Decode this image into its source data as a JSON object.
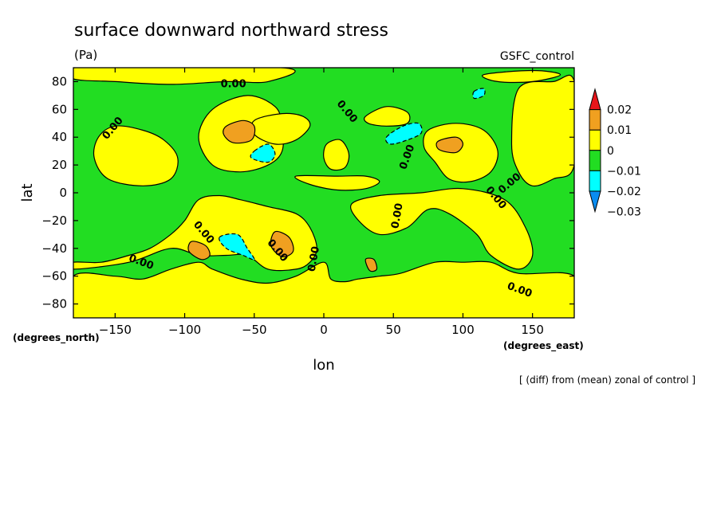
{
  "chart_data": {
    "type": "heatmap",
    "title": "surface downward northward stress",
    "units": "(Pa)",
    "dataset": "GSFC_control",
    "footnote": "[ (diff) from (mean) zonal of control ]",
    "xlabel": "lon",
    "ylabel": "lat",
    "x_units": "(degrees_east)",
    "y_units": "(degrees_north)",
    "xlim": [
      -180,
      180
    ],
    "ylim": [
      -90,
      90
    ],
    "x_ticks": [
      -150,
      -100,
      -50,
      0,
      50,
      100,
      150
    ],
    "y_ticks": [
      80,
      60,
      40,
      20,
      0,
      -20,
      -40,
      -60,
      -80
    ],
    "contour_label": "0.00",
    "colorbar": {
      "labels": [
        "0.02",
        "0.01",
        "0",
        "−0.01",
        "−0.02",
        "−0.03"
      ],
      "bins": [
        {
          "range": [
            0.02,
            null
          ],
          "color": "#e8151b"
        },
        {
          "range": [
            0.01,
            0.02
          ],
          "color": "#f0a020"
        },
        {
          "range": [
            0.0,
            0.01
          ],
          "color": "#ffff00"
        },
        {
          "range": [
            -0.01,
            0.0
          ],
          "color": "#22dd22"
        },
        {
          "range": [
            -0.02,
            -0.01
          ],
          "color": "#00ffff"
        },
        {
          "range": [
            null,
            -0.02
          ],
          "color": "#0a8cf0"
        }
      ]
    },
    "background_color": "#22dd22",
    "regions": [
      {
        "level": 0.0,
        "color": "#ffff00",
        "polygon": [
          [
            -180,
            -90
          ],
          [
            180,
            -90
          ],
          [
            180,
            -60
          ],
          [
            140,
            -58
          ],
          [
            120,
            -50
          ],
          [
            100,
            -50
          ],
          [
            80,
            -50
          ],
          [
            55,
            -58
          ],
          [
            40,
            -60
          ],
          [
            25,
            -62
          ],
          [
            15,
            -64
          ],
          [
            5,
            -62
          ],
          [
            0,
            -50
          ],
          [
            -20,
            -60
          ],
          [
            -40,
            -65
          ],
          [
            -60,
            -62
          ],
          [
            -80,
            -55
          ],
          [
            -90,
            -50
          ],
          [
            -110,
            -55
          ],
          [
            -130,
            -62
          ],
          [
            -150,
            -60
          ],
          [
            -180,
            -60
          ]
        ]
      },
      {
        "level": 0.0,
        "color": "#ffff00",
        "polygon": [
          [
            -180,
            -50
          ],
          [
            -160,
            -50
          ],
          [
            -140,
            -45
          ],
          [
            -125,
            -40
          ],
          [
            -110,
            -30
          ],
          [
            -100,
            -20
          ],
          [
            -90,
            -5
          ],
          [
            -75,
            -2
          ],
          [
            -60,
            -5
          ],
          [
            -40,
            -10
          ],
          [
            -20,
            -15
          ],
          [
            -10,
            -25
          ],
          [
            -5,
            -40
          ],
          [
            -10,
            -50
          ],
          [
            -20,
            -55
          ],
          [
            -40,
            -55
          ],
          [
            -55,
            -45
          ],
          [
            -70,
            -45
          ],
          [
            -90,
            -45
          ],
          [
            -110,
            -40
          ],
          [
            -140,
            -50
          ],
          [
            -180,
            -55
          ]
        ]
      },
      {
        "level": 0.0,
        "color": "#ffff00",
        "polygon": [
          [
            -80,
            60
          ],
          [
            -55,
            70
          ],
          [
            -35,
            62
          ],
          [
            -30,
            48
          ],
          [
            -30,
            30
          ],
          [
            -40,
            20
          ],
          [
            -60,
            15
          ],
          [
            -80,
            20
          ],
          [
            -90,
            40
          ]
        ]
      },
      {
        "level": 0.0,
        "color": "#ffff00",
        "polygon": [
          [
            -150,
            48
          ],
          [
            -130,
            45
          ],
          [
            -115,
            38
          ],
          [
            -105,
            25
          ],
          [
            -110,
            10
          ],
          [
            -130,
            5
          ],
          [
            -155,
            10
          ],
          [
            -165,
            25
          ],
          [
            -162,
            40
          ]
        ]
      },
      {
        "level": 0.0,
        "color": "#ffff00",
        "polygon": [
          [
            -50,
            52
          ],
          [
            -30,
            57
          ],
          [
            -15,
            55
          ],
          [
            -10,
            48
          ],
          [
            -20,
            38
          ],
          [
            -35,
            35
          ],
          [
            -50,
            42
          ]
        ]
      },
      {
        "level": 0.0,
        "color": "#ffff00",
        "polygon": [
          [
            40,
            -2
          ],
          [
            70,
            0
          ],
          [
            100,
            3
          ],
          [
            130,
            -5
          ],
          [
            145,
            -25
          ],
          [
            150,
            -45
          ],
          [
            140,
            -55
          ],
          [
            120,
            -45
          ],
          [
            110,
            -30
          ],
          [
            90,
            -15
          ],
          [
            75,
            -12
          ],
          [
            60,
            -25
          ],
          [
            40,
            -30
          ],
          [
            25,
            -20
          ],
          [
            20,
            -8
          ]
        ]
      },
      {
        "level": 0.0,
        "color": "#ffff00",
        "polygon": [
          [
            75,
            45
          ],
          [
            95,
            50
          ],
          [
            115,
            45
          ],
          [
            125,
            30
          ],
          [
            120,
            15
          ],
          [
            105,
            8
          ],
          [
            90,
            10
          ],
          [
            80,
            22
          ],
          [
            72,
            33
          ]
        ]
      },
      {
        "level": 0.0,
        "color": "#ffff00",
        "polygon": [
          [
            -20,
            12
          ],
          [
            -10,
            6
          ],
          [
            10,
            2
          ],
          [
            30,
            3
          ],
          [
            40,
            8
          ],
          [
            30,
            12
          ],
          [
            10,
            12
          ]
        ]
      },
      {
        "level": 0.0,
        "color": "#ffff00",
        "polygon": [
          [
            2,
            35
          ],
          [
            12,
            38
          ],
          [
            18,
            28
          ],
          [
            15,
            18
          ],
          [
            5,
            17
          ],
          [
            0,
            25
          ]
        ]
      },
      {
        "level": 0.0,
        "color": "#ffff00",
        "polygon": [
          [
            140,
            75
          ],
          [
            165,
            80
          ],
          [
            180,
            80
          ],
          [
            180,
            20
          ],
          [
            165,
            10
          ],
          [
            150,
            5
          ],
          [
            140,
            15
          ],
          [
            135,
            35
          ]
        ]
      },
      {
        "level": 0.0,
        "color": "#ffff00",
        "polygon": [
          [
            -180,
            90
          ],
          [
            -30,
            90
          ],
          [
            -40,
            80
          ],
          [
            -70,
            80
          ],
          [
            -110,
            78
          ],
          [
            -150,
            80
          ],
          [
            -180,
            82
          ]
        ]
      },
      {
        "level": 0.0,
        "color": "#ffff00",
        "polygon": [
          [
            30,
            55
          ],
          [
            45,
            62
          ],
          [
            60,
            58
          ],
          [
            60,
            50
          ],
          [
            45,
            48
          ],
          [
            32,
            50
          ]
        ]
      },
      {
        "level": 0.0,
        "color": "#ffff00",
        "polygon": [
          [
            115,
            85
          ],
          [
            150,
            88
          ],
          [
            170,
            85
          ],
          [
            150,
            80
          ],
          [
            125,
            80
          ]
        ]
      },
      {
        "level": 0.01,
        "color": "#f0a020",
        "polygon": [
          [
            -70,
            48
          ],
          [
            -58,
            52
          ],
          [
            -50,
            48
          ],
          [
            -52,
            38
          ],
          [
            -65,
            36
          ],
          [
            -72,
            42
          ]
        ]
      },
      {
        "level": 0.01,
        "color": "#f0a020",
        "polygon": [
          [
            -95,
            -35
          ],
          [
            -85,
            -38
          ],
          [
            -82,
            -45
          ],
          [
            -88,
            -48
          ],
          [
            -97,
            -42
          ]
        ]
      },
      {
        "level": 0.01,
        "color": "#f0a020",
        "polygon": [
          [
            -35,
            -28
          ],
          [
            -25,
            -32
          ],
          [
            -22,
            -42
          ],
          [
            -30,
            -46
          ],
          [
            -38,
            -38
          ]
        ]
      },
      {
        "level": 0.01,
        "color": "#f0a020",
        "polygon": [
          [
            82,
            37
          ],
          [
            95,
            40
          ],
          [
            100,
            35
          ],
          [
            95,
            29
          ],
          [
            83,
            31
          ]
        ]
      },
      {
        "level": 0.01,
        "color": "#f0a020",
        "polygon": [
          [
            30,
            -48
          ],
          [
            36,
            -48
          ],
          [
            38,
            -55
          ],
          [
            33,
            -56
          ]
        ]
      },
      {
        "level": -0.01,
        "color": "#00ffff",
        "polygon": [
          [
            -50,
            30
          ],
          [
            -40,
            35
          ],
          [
            -35,
            28
          ],
          [
            -40,
            22
          ],
          [
            -52,
            25
          ]
        ]
      },
      {
        "level": -0.01,
        "color": "#00ffff",
        "polygon": [
          [
            -75,
            -32
          ],
          [
            -62,
            -30
          ],
          [
            -55,
            -40
          ],
          [
            -50,
            -48
          ],
          [
            -58,
            -45
          ],
          [
            -70,
            -40
          ]
        ]
      },
      {
        "level": -0.01,
        "color": "#00ffff",
        "polygon": [
          [
            45,
            40
          ],
          [
            57,
            48
          ],
          [
            68,
            50
          ],
          [
            70,
            43
          ],
          [
            60,
            38
          ],
          [
            48,
            35
          ]
        ]
      },
      {
        "level": -0.01,
        "color": "#00ffff",
        "polygon": [
          [
            108,
            73
          ],
          [
            115,
            75
          ],
          [
            115,
            70
          ],
          [
            108,
            68
          ]
        ]
      }
    ]
  }
}
